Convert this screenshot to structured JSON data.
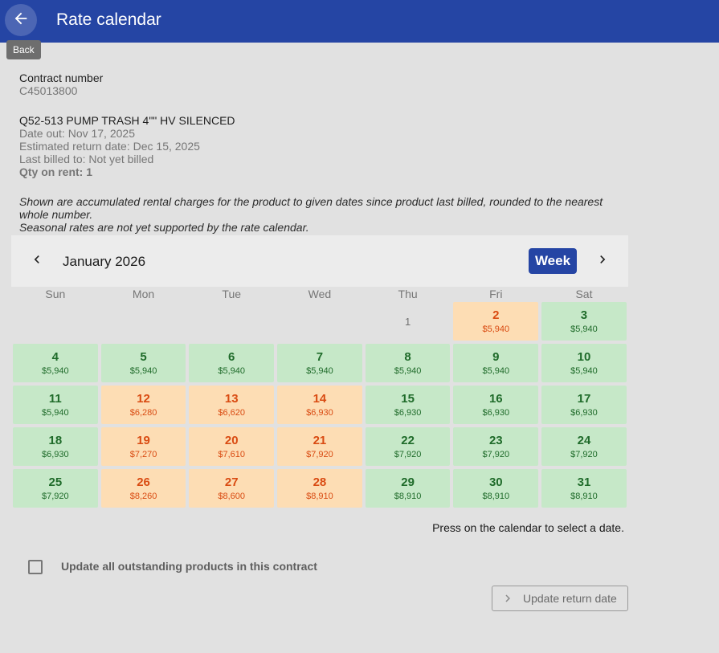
{
  "appbar": {
    "title": "Rate calendar",
    "back_tooltip": "Back"
  },
  "contract": {
    "label": "Contract number",
    "number": "C45013800"
  },
  "product": {
    "name": "Q52-513 PUMP TRASH 4\"\" HV SILENCED",
    "date_out": "Date out: Nov 17, 2025",
    "estimated_return": "Estimated return date: Dec 15, 2025",
    "last_billed": "Last billed to: Not yet billed",
    "qty_on_rent": "Qty on rent: 1"
  },
  "notes": {
    "line1": "Shown are accumulated rental charges for the product to given dates since product last billed, rounded to the nearest whole number.",
    "line2": "Seasonal rates are not yet supported by the rate calendar."
  },
  "calendar": {
    "month_label": "January 2026",
    "view_button": "Week",
    "weekdays": [
      "Sun",
      "Mon",
      "Tue",
      "Wed",
      "Thu",
      "Fri",
      "Sat"
    ],
    "colors": {
      "green_bg": "#c6e8c8",
      "green_text": "#1f6b2a",
      "orange_bg": "#fdddb4",
      "orange_text": "#d94b12",
      "accent": "#2545a4"
    },
    "weeks": [
      [
        {
          "day": "",
          "price": "",
          "status": "empty"
        },
        {
          "day": "",
          "price": "",
          "status": "empty"
        },
        {
          "day": "",
          "price": "",
          "status": "empty"
        },
        {
          "day": "",
          "price": "",
          "status": "empty"
        },
        {
          "day": "1",
          "price": "",
          "status": "plain"
        },
        {
          "day": "2",
          "price": "$5,940",
          "status": "orange"
        },
        {
          "day": "3",
          "price": "$5,940",
          "status": "green"
        }
      ],
      [
        {
          "day": "4",
          "price": "$5,940",
          "status": "green"
        },
        {
          "day": "5",
          "price": "$5,940",
          "status": "green"
        },
        {
          "day": "6",
          "price": "$5,940",
          "status": "green"
        },
        {
          "day": "7",
          "price": "$5,940",
          "status": "green"
        },
        {
          "day": "8",
          "price": "$5,940",
          "status": "green"
        },
        {
          "day": "9",
          "price": "$5,940",
          "status": "green"
        },
        {
          "day": "10",
          "price": "$5,940",
          "status": "green"
        }
      ],
      [
        {
          "day": "11",
          "price": "$5,940",
          "status": "green"
        },
        {
          "day": "12",
          "price": "$6,280",
          "status": "orange"
        },
        {
          "day": "13",
          "price": "$6,620",
          "status": "orange"
        },
        {
          "day": "14",
          "price": "$6,930",
          "status": "orange"
        },
        {
          "day": "15",
          "price": "$6,930",
          "status": "green"
        },
        {
          "day": "16",
          "price": "$6,930",
          "status": "green"
        },
        {
          "day": "17",
          "price": "$6,930",
          "status": "green"
        }
      ],
      [
        {
          "day": "18",
          "price": "$6,930",
          "status": "green"
        },
        {
          "day": "19",
          "price": "$7,270",
          "status": "orange"
        },
        {
          "day": "20",
          "price": "$7,610",
          "status": "orange"
        },
        {
          "day": "21",
          "price": "$7,920",
          "status": "orange"
        },
        {
          "day": "22",
          "price": "$7,920",
          "status": "green"
        },
        {
          "day": "23",
          "price": "$7,920",
          "status": "green"
        },
        {
          "day": "24",
          "price": "$7,920",
          "status": "green"
        }
      ],
      [
        {
          "day": "25",
          "price": "$7,920",
          "status": "green"
        },
        {
          "day": "26",
          "price": "$8,260",
          "status": "orange"
        },
        {
          "day": "27",
          "price": "$8,600",
          "status": "orange"
        },
        {
          "day": "28",
          "price": "$8,910",
          "status": "orange"
        },
        {
          "day": "29",
          "price": "$8,910",
          "status": "green"
        },
        {
          "day": "30",
          "price": "$8,910",
          "status": "green"
        },
        {
          "day": "31",
          "price": "$8,910",
          "status": "green"
        }
      ]
    ],
    "hint": "Press on the calendar to select a date."
  },
  "footer": {
    "checkbox_label": "Update all outstanding products in this contract",
    "checkbox_checked": false,
    "update_button": "Update return date"
  }
}
